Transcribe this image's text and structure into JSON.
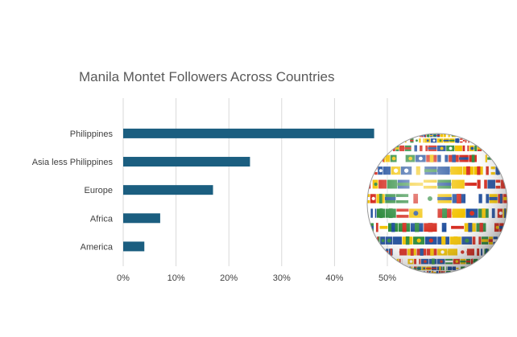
{
  "chart_data": {
    "type": "bar",
    "orientation": "horizontal",
    "title": "Manila Montet Followers Across Countries",
    "categories": [
      "Philippines",
      "Asia less Philippines",
      "Europe",
      "Africa",
      "America"
    ],
    "values": [
      47.5,
      24,
      17,
      7,
      4
    ],
    "xlim": [
      0,
      50
    ],
    "xticks": [
      0,
      10,
      20,
      30,
      40,
      50
    ],
    "tick_labels": [
      "0%",
      "10%",
      "20%",
      "30%",
      "40%",
      "50%"
    ],
    "xlabel": "",
    "ylabel": "",
    "grid": "vertical",
    "bar_color": "#1b5e80"
  },
  "decoration": {
    "image": "globe-of-flags",
    "colors": [
      "#d52b1e",
      "#ffffff",
      "#1f4e9c",
      "#f2c200",
      "#2e8b3e"
    ]
  }
}
